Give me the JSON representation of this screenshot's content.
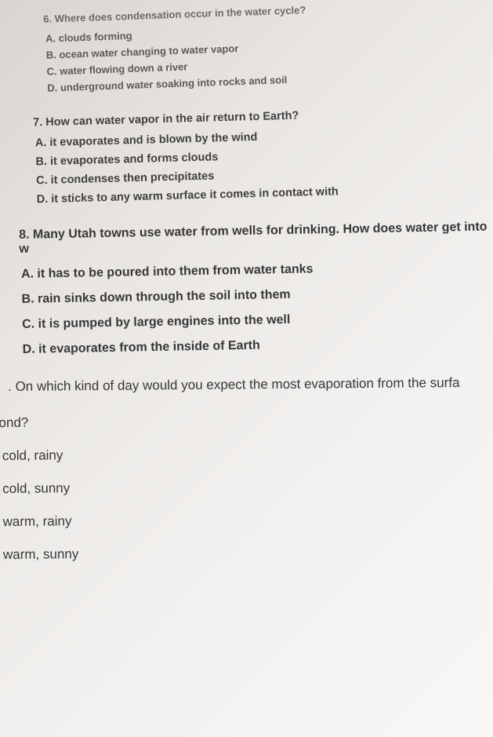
{
  "q6": {
    "question": "6. Where does condensation occur in the water cycle?",
    "options": {
      "a": "A. clouds forming",
      "b": "B. ocean water changing to water vapor",
      "c": "C. water flowing down a river",
      "d": "D. underground water soaking into rocks and soil"
    }
  },
  "q7": {
    "question": "7. How can water vapor in the air return to Earth?",
    "options": {
      "a": "A. it evaporates and is blown by the wind",
      "b": "B. it evaporates and forms clouds",
      "c": "C. it condenses then precipitates",
      "d": "D. it sticks to any warm surface it comes in contact with"
    }
  },
  "q8": {
    "question": "8. Many Utah towns use water from wells for drinking. How does water get into w",
    "options": {
      "a": "A. it has to be poured into them from water tanks",
      "b": "B. rain sinks down through the soil into them",
      "c": "C. it is pumped by large engines into the well",
      "d": "D. it evaporates from the inside of Earth"
    }
  },
  "q9": {
    "question": ". On which kind of day would you expect the most evaporation from the surfa",
    "pond_text": "ond?",
    "options": {
      "a": "cold, rainy",
      "b": "cold, sunny",
      "c": "warm, rainy",
      "d": "warm, sunny"
    }
  },
  "style": {
    "background_gradient_start": "#d8d4d0",
    "background_gradient_end": "#f8f7f6",
    "text_color_faded": "#6a6a6a",
    "text_color_mid": "#4a4a4a",
    "text_color_dark": "#383838",
    "font_family": "Arial",
    "q6_fontsize": 13,
    "q7_fontsize": 14.5,
    "q8_fontsize": 16,
    "q9_fontsize": 17,
    "rotation_q6": -2,
    "rotation_q7": -1.5,
    "rotation_q8": -1,
    "rotation_q9": -0.5
  }
}
